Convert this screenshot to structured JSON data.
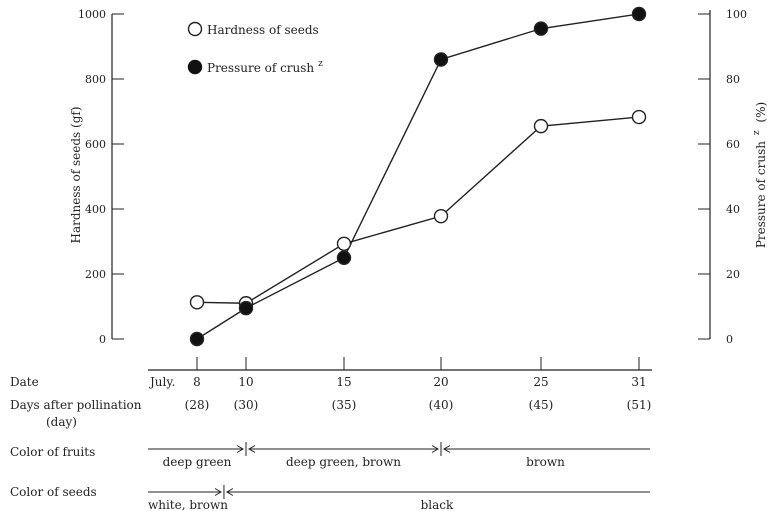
{
  "chart_data": {
    "type": "line",
    "xlabel": "Date",
    "date_prefix": "July.",
    "categories": [
      "8",
      "10",
      "15",
      "20",
      "25",
      "31"
    ],
    "days_after_pollination_label": "Days after pollination",
    "days_after_pollination_unit": "(day)",
    "days_after_pollination": [
      "(28)",
      "(30)",
      "(35)",
      "(40)",
      "(45)",
      "(51)"
    ],
    "ylabel_left": "Hardness of seeds (gf)",
    "ylim_left": [
      0,
      1000
    ],
    "yticks_left": [
      "0",
      "200",
      "400",
      "600",
      "800",
      "1000"
    ],
    "ylabel_right": "Pressure of crush",
    "ylabel_right_sup": "z",
    "ylabel_right_unit": "(%)",
    "ylim_right": [
      0,
      100
    ],
    "yticks_right": [
      "0",
      "20",
      "40",
      "60",
      "80",
      "100"
    ],
    "legend_position": "top-left",
    "series": [
      {
        "name": "Hardness of seeds",
        "name_sup": "",
        "marker": "open-circle",
        "axis": "left",
        "values": [
          113,
          110,
          293,
          378,
          655,
          683
        ]
      },
      {
        "name": "Pressure of crush",
        "name_sup": "z",
        "marker": "filled-circle",
        "axis": "right",
        "values": [
          0,
          9.5,
          25,
          86,
          95.5,
          100
        ]
      }
    ],
    "rows": [
      {
        "label": "Color of fruits",
        "segments": [
          {
            "from": 0,
            "to": 1,
            "text": "deep green"
          },
          {
            "from": 1,
            "to": 3,
            "text": "deep green, brown"
          },
          {
            "from": 3,
            "to": 5,
            "text": "brown"
          }
        ]
      },
      {
        "label": "Color of seeds",
        "segments": [
          {
            "from": 0,
            "to": 0.55,
            "text": "white, brown"
          },
          {
            "from": 0.55,
            "to": 5,
            "text": "black"
          }
        ]
      }
    ]
  }
}
